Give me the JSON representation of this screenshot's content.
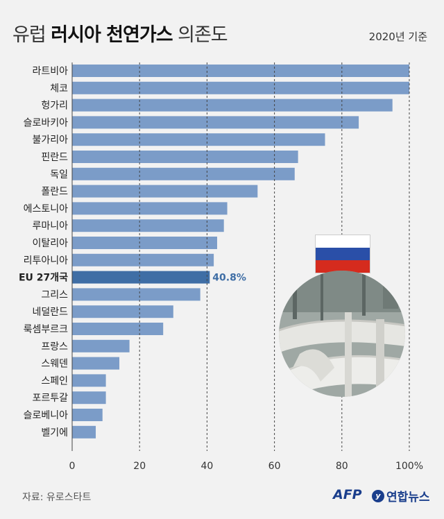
{
  "header": {
    "title_part1": "유럽 ",
    "title_bold": "러시아 천연가스",
    "title_part2": " 의존도",
    "basis": "2020년 기준"
  },
  "footer": {
    "source": "자료: 유로스타트",
    "afp": "AFP",
    "yna": "연합뉴스"
  },
  "colors": {
    "bar": "#7b9cc8",
    "highlight_bar": "#3f6ea5",
    "highlight_label": "#3f6ea5"
  },
  "chart_data": {
    "type": "bar",
    "orientation": "horizontal",
    "categories": [
      "라트비아",
      "체코",
      "헝가리",
      "슬로바키아",
      "불가리아",
      "핀란드",
      "독일",
      "폴란드",
      "에스토니아",
      "루마니아",
      "이탈리아",
      "리투아니아",
      "EU 27개국",
      "그리스",
      "네덜란드",
      "룩셈부르크",
      "프랑스",
      "스웨덴",
      "스페인",
      "포르투갈",
      "슬로베니아",
      "벨기에"
    ],
    "values": [
      100,
      100,
      95,
      85,
      75,
      67,
      66,
      55,
      46,
      45,
      43,
      42,
      40.8,
      38,
      30,
      27,
      17,
      14,
      10,
      10,
      9,
      7
    ],
    "highlight": {
      "category": "EU 27개국",
      "label": "40.8%"
    },
    "xlim": [
      0,
      100
    ],
    "xticks": [
      "0",
      "20",
      "40",
      "60",
      "80",
      "100%"
    ],
    "xtick_values": [
      0,
      20,
      40,
      60,
      80,
      100
    ],
    "grid": true
  }
}
